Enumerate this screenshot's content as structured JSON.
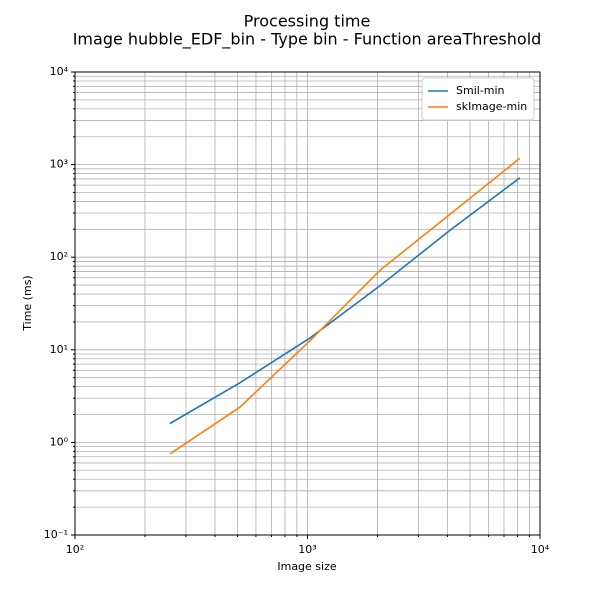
{
  "chart_data": {
    "type": "line",
    "title": "Processing time",
    "subtitle": "Image hubble_EDF_bin - Type bin - Function areaThreshold",
    "x_label": "Image size",
    "y_label": "Time (ms)",
    "x": [
      256,
      512,
      1024,
      2048,
      4096,
      8192
    ],
    "series": [
      {
        "name": "Smil-min",
        "color": "#1f77b4",
        "values": [
          1.6,
          4.4,
          13.4,
          49,
          195,
          720
        ]
      },
      {
        "name": "skImage-min",
        "color": "#ff7f0e",
        "values": [
          0.75,
          2.4,
          12.5,
          72,
          290,
          1170
        ]
      }
    ],
    "xscale": "log",
    "yscale": "log",
    "xlim": [
      100,
      10000
    ],
    "ylim": [
      0.1,
      10000
    ],
    "xticks": [
      {
        "value": 100,
        "label": "10²"
      },
      {
        "value": 1000,
        "label": "10³"
      },
      {
        "value": 10000,
        "label": "10⁴"
      }
    ],
    "yticks": [
      {
        "value": 0.1,
        "label": "10⁻¹"
      },
      {
        "value": 1,
        "label": "10⁰"
      },
      {
        "value": 10,
        "label": "10¹"
      },
      {
        "value": 100,
        "label": "10²"
      },
      {
        "value": 1000,
        "label": "10³"
      },
      {
        "value": 10000,
        "label": "10⁴"
      }
    ],
    "grid": true,
    "minor_grid": true,
    "legend": "upper-right"
  }
}
